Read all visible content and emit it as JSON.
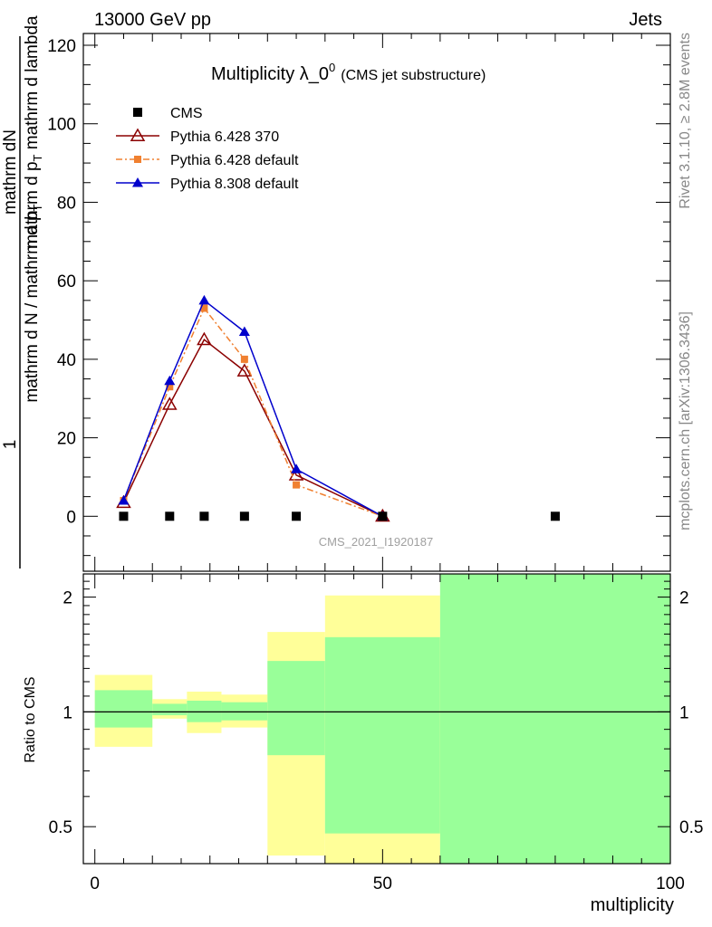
{
  "header": {
    "left": "13000 GeV pp",
    "right": "Jets"
  },
  "side_text": {
    "rivet": "Rivet 3.1.10, ≥ 2.8M events",
    "mcplots": "mcplots.cern.ch [arXiv:1306.3436]"
  },
  "chart_data": [
    {
      "type": "line",
      "title": "Multiplicity λ_0",
      "title_sup": "0",
      "subtitle": "(CMS jet substructure)",
      "watermark": "CMS_2021_I1920187",
      "ylabel_num": "mathrm dN",
      "ylabel_den": "mathrm d p",
      "ylabel_den_sub": "T",
      "ylabel_den_rest": " mathrm d lambda",
      "ylabel_outer_num": "1",
      "ylabel_outer_den": "mathrm d N / mathrm d p",
      "ylabel_outer_den_sub": "T",
      "xlim": [
        -2,
        100
      ],
      "ylim": [
        -14,
        123
      ],
      "yticks": [
        0,
        20,
        40,
        60,
        80,
        100,
        120
      ],
      "ytick_labels": [
        "0",
        "20",
        "40",
        "60",
        "80",
        "100",
        "120"
      ],
      "legend_placement": "top-left",
      "series": [
        {
          "name": "CMS",
          "color": "#000000",
          "marker": "square",
          "x": [
            5,
            13,
            19,
            26,
            35,
            50,
            80
          ],
          "y": [
            0,
            0,
            0,
            0,
            0,
            0,
            0
          ]
        },
        {
          "name": "Pythia 6.428 370",
          "color": "#8b0000",
          "marker": "open-triangle",
          "line": "solid",
          "x": [
            5,
            13,
            19,
            26,
            35,
            50
          ],
          "y": [
            3.5,
            28.5,
            45,
            37,
            10.5,
            0
          ]
        },
        {
          "name": "Pythia 6.428 default",
          "color": "#f08030",
          "marker": "square-small",
          "line": "dash-dot",
          "x": [
            5,
            13,
            19,
            26,
            35,
            50
          ],
          "y": [
            4,
            33,
            53,
            40,
            8,
            0
          ]
        },
        {
          "name": "Pythia 8.308 default",
          "color": "#0000cc",
          "marker": "filled-triangle",
          "line": "solid",
          "x": [
            5,
            13,
            19,
            26,
            35,
            50
          ],
          "y": [
            4,
            34.5,
            55,
            47,
            12,
            0
          ]
        }
      ]
    },
    {
      "type": "area",
      "ylabel": "Ratio to CMS",
      "xlabel": "multiplicity",
      "scale": "log",
      "ylim": [
        0.4,
        2.3
      ],
      "yticks": [
        0.5,
        1,
        2
      ],
      "ytick_labels": [
        "0.5",
        "1",
        "2"
      ],
      "xticks": [
        0,
        50,
        100
      ],
      "xtick_labels": [
        "0",
        "50",
        "100"
      ],
      "reference_line": 1,
      "band_colors": {
        "outer": "#ffff99",
        "inner": "#99ff99"
      },
      "bins": [
        {
          "x": [
            0,
            10
          ],
          "yellow": [
            0.81,
            1.25
          ],
          "green": [
            0.91,
            1.14
          ]
        },
        {
          "x": [
            10,
            16
          ],
          "yellow": [
            0.96,
            1.08
          ],
          "green": [
            0.98,
            1.05
          ]
        },
        {
          "x": [
            16,
            22
          ],
          "yellow": [
            0.88,
            1.13
          ],
          "green": [
            0.94,
            1.07
          ]
        },
        {
          "x": [
            22,
            30
          ],
          "yellow": [
            0.91,
            1.11
          ],
          "green": [
            0.95,
            1.06
          ]
        },
        {
          "x": [
            30,
            40
          ],
          "yellow": [
            0.42,
            1.62
          ],
          "green": [
            0.77,
            1.36
          ]
        },
        {
          "x": [
            40,
            60
          ],
          "yellow": [
            0.4,
            2.02
          ],
          "green": [
            0.48,
            1.57
          ]
        },
        {
          "x": [
            60,
            100
          ],
          "yellow": [
            0.4,
            2.3
          ],
          "green": [
            0.4,
            2.3
          ]
        }
      ]
    }
  ]
}
